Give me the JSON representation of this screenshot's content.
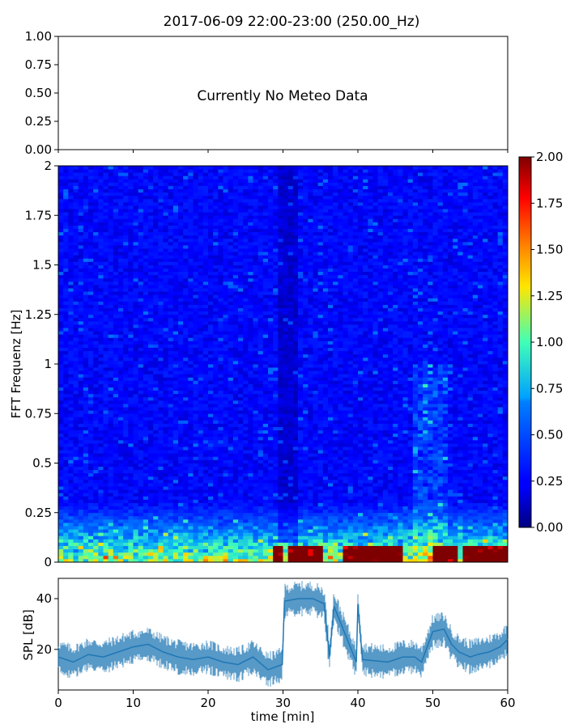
{
  "figure": {
    "title": "2017-06-09 22:00-23:00 (250.00_Hz)"
  },
  "colors": {
    "axis": "#000000",
    "series": "#1f77b4",
    "background": "#ffffff",
    "colormap": "jet"
  },
  "chart_data": [
    {
      "id": "meteo",
      "type": "line",
      "message": "Currently No Meteo Data",
      "ylim": [
        0,
        1
      ],
      "yticks": [
        "0.00",
        "0.25",
        "0.50",
        "0.75",
        "1.00"
      ],
      "xlim": [
        0,
        60
      ],
      "series": []
    },
    {
      "id": "spectrogram",
      "type": "heatmap",
      "ylabel": "FFT Frequenz [Hz]",
      "ylim": [
        0,
        2
      ],
      "yticks": [
        "0",
        "0.25",
        "0.5",
        "0.75",
        "1",
        "1.25",
        "1.5",
        "1.75",
        "2"
      ],
      "xlim": [
        0,
        60
      ],
      "colormap": "jet",
      "colorbar": {
        "range": [
          0,
          2
        ],
        "ticks": [
          "0.00",
          "0.25",
          "0.50",
          "0.75",
          "1.00",
          "1.25",
          "1.50",
          "1.75",
          "2.00"
        ]
      },
      "description_values": {
        "background_level": 0.15,
        "low_frequency_band_level": 1.0,
        "strong_low_frequency_segments_min": [
          [
            29,
            30
          ],
          [
            31,
            35
          ],
          [
            38,
            46
          ],
          [
            50,
            53
          ],
          [
            54,
            60
          ]
        ]
      }
    },
    {
      "id": "spl",
      "type": "line",
      "ylabel": "SPL [dB]",
      "xlabel": "time [min]",
      "xlim": [
        0,
        60
      ],
      "ylim": [
        4,
        48
      ],
      "yticks": [
        "20",
        "40"
      ],
      "xticks": [
        "0",
        "10",
        "20",
        "30",
        "40",
        "50",
        "60"
      ],
      "x": [
        0,
        2,
        4,
        6,
        8,
        10,
        12,
        14,
        16,
        18,
        20,
        22,
        24,
        26,
        28,
        29.9,
        30.2,
        32,
        34,
        35.5,
        36.2,
        36.8,
        39.8,
        40,
        40.6,
        44,
        46,
        47.6,
        48.5,
        50,
        51.5,
        52.5,
        53.5,
        55,
        56,
        57.5,
        59,
        60
      ],
      "values": [
        17,
        15,
        18,
        17,
        19,
        21,
        22,
        19,
        17,
        16,
        17,
        15,
        14,
        17,
        12,
        14,
        39,
        40,
        40,
        38,
        17,
        37,
        15,
        38,
        16,
        15,
        17,
        17,
        15,
        27,
        28,
        22,
        19,
        17,
        18,
        19,
        21,
        24
      ]
    }
  ]
}
